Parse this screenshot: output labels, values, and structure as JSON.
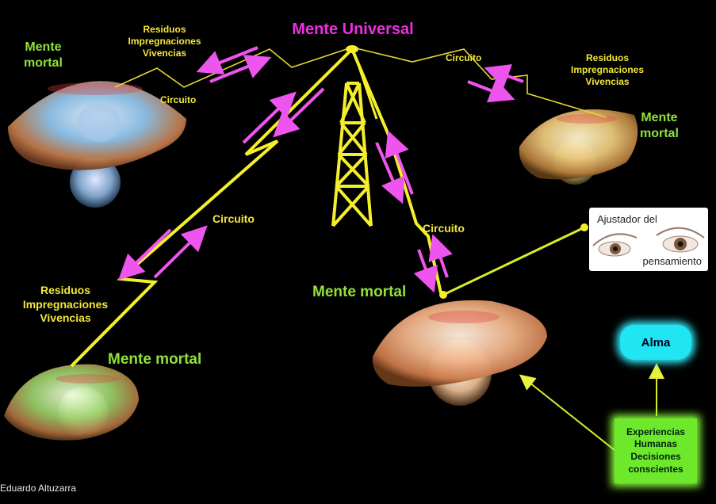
{
  "title": "Mente Universal",
  "mente_mortal": {
    "top_left": [
      "Mente",
      "mortal"
    ],
    "top_right": [
      "Mente",
      "mortal"
    ],
    "bottom_left": "Mente mortal",
    "bottom_center": "Mente mortal"
  },
  "residuos": {
    "top_left": [
      "Residuos",
      "Impregnaciones",
      "Vivencias"
    ],
    "top_right": [
      "Residuos",
      "Impregnaciones",
      "Vivencias"
    ],
    "bottom_left": [
      "Residuos",
      "Impregnaciones",
      "Vivencias"
    ]
  },
  "circuito": {
    "top_left": "Circuito",
    "top_right": "Circuito",
    "middle_left": "Circuito",
    "middle_right": "Circuito"
  },
  "ajustador": [
    "Ajustador del",
    "pensamiento"
  ],
  "alma": "Alma",
  "experiencias": [
    "Experiencias",
    "Humanas",
    "Decisiones",
    "conscientes"
  ],
  "credit": "Eduardo Altuzarra",
  "colors": {
    "title": "#ee2ee0",
    "mente_mortal": "#8fe23a",
    "residuos": "#f2e83a",
    "circuit_line": "#f5ef2b",
    "arrow": "#ee55ee",
    "alma": "#1fe6f2",
    "experiencias": "#6ee82a"
  }
}
